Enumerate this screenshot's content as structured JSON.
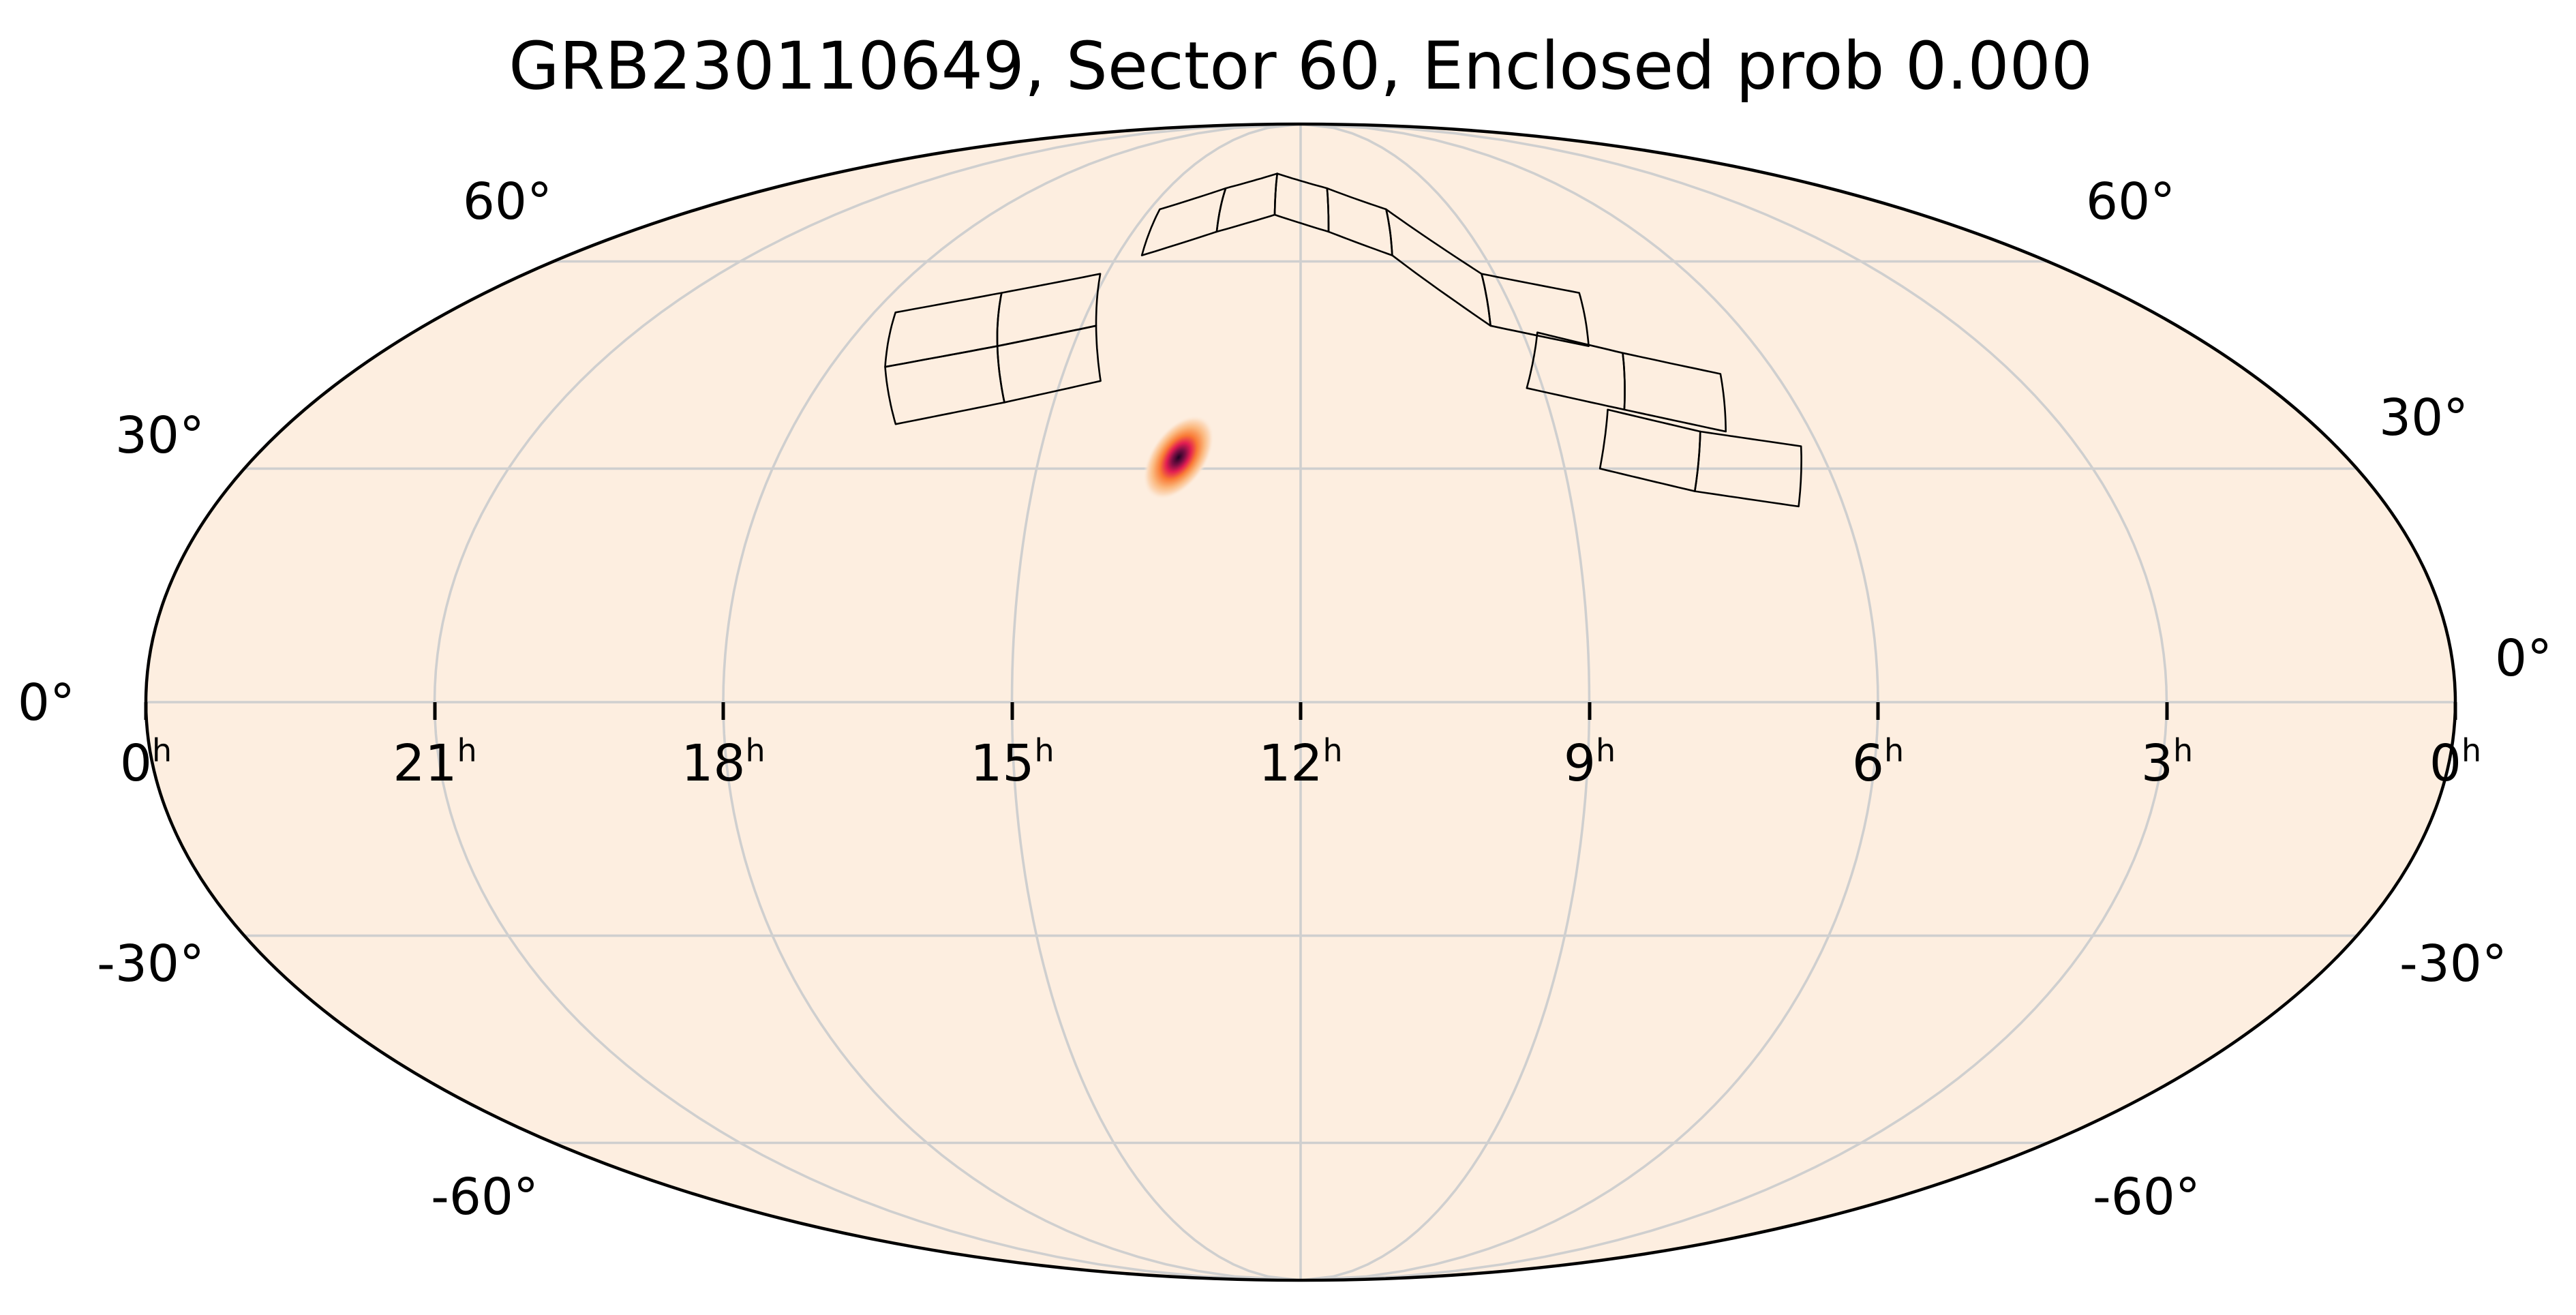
{
  "chart_data": {
    "type": "heatmap",
    "projection": "mollweide",
    "title": "GRB230110649, Sector 60, Enclosed prob 0.000",
    "colormap": "magma_r",
    "background_color": "#fdeee0",
    "ra_ticks": [
      {
        "value": 0,
        "label": "0",
        "unit": "h",
        "side": "left"
      },
      {
        "value": 21,
        "label": "21",
        "unit": "h"
      },
      {
        "value": 18,
        "label": "18",
        "unit": "h"
      },
      {
        "value": 15,
        "label": "15",
        "unit": "h"
      },
      {
        "value": 12,
        "label": "12",
        "unit": "h"
      },
      {
        "value": 9,
        "label": "9",
        "unit": "h"
      },
      {
        "value": 6,
        "label": "6",
        "unit": "h"
      },
      {
        "value": 3,
        "label": "3",
        "unit": "h"
      },
      {
        "value": 0,
        "label": "0",
        "unit": "h",
        "side": "right"
      }
    ],
    "dec_ticks": [
      {
        "value": 60,
        "label": "60°"
      },
      {
        "value": 30,
        "label": "30°"
      },
      {
        "value": 0,
        "label": "0°"
      },
      {
        "value": -30,
        "label": "-30°"
      },
      {
        "value": -60,
        "label": "-60°"
      }
    ],
    "grid": true,
    "probability_blob": {
      "ra_hours": 13.4,
      "dec_deg": 31.5,
      "sigma_major_deg": 4.5,
      "sigma_minor_deg": 2.6,
      "orientation_deg": 55,
      "peak_color": "#1e0322"
    },
    "footprints": [
      {
        "ra_hours": [
          17.7,
          16.4,
          16.0,
          17.3
        ],
        "dec_deg": [
          52,
          55,
          47,
          44
        ]
      },
      {
        "ra_hours": [
          16.4,
          15.1,
          14.8,
          16.0
        ],
        "dec_deg": [
          55,
          58,
          50,
          47
        ]
      },
      {
        "ra_hours": [
          17.3,
          16.0,
          15.6,
          16.8
        ],
        "dec_deg": [
          44,
          47,
          39,
          36
        ]
      },
      {
        "ra_hours": [
          16.0,
          14.8,
          14.5,
          15.6
        ],
        "dec_deg": [
          47,
          50,
          42,
          39
        ]
      },
      {
        "ra_hours": [
          14.8,
          13.7,
          13.5,
          14.6
        ],
        "dec_deg": [
          69,
          73,
          65,
          61
        ]
      },
      {
        "ra_hours": [
          13.7,
          12.6,
          12.5,
          13.5
        ],
        "dec_deg": [
          73,
          76,
          68,
          65
        ]
      },
      {
        "ra_hours": [
          12.6,
          11.4,
          11.5,
          12.5
        ],
        "dec_deg": [
          76,
          73,
          65,
          68
        ]
      },
      {
        "ra_hours": [
          11.4,
          10.3,
          10.5,
          11.5
        ],
        "dec_deg": [
          73,
          69,
          61,
          65
        ]
      },
      {
        "ra_hours": [
          10.3,
          9.2,
          9.4,
          10.5
        ],
        "dec_deg": [
          69,
          58,
          50,
          61
        ]
      },
      {
        "ra_hours": [
          9.2,
          7.9,
          8.2,
          9.4
        ],
        "dec_deg": [
          58,
          55,
          47,
          50
        ]
      },
      {
        "ra_hours": [
          8.8,
          7.8,
          8.1,
          9.2
        ],
        "dec_deg": [
          49,
          46,
          38,
          41
        ]
      },
      {
        "ra_hours": [
          7.8,
          6.7,
          7.0,
          8.1
        ],
        "dec_deg": [
          46,
          43,
          35,
          38
        ]
      },
      {
        "ra_hours": [
          8.3,
          7.3,
          7.6,
          8.6
        ],
        "dec_deg": [
          38,
          35,
          27,
          30
        ]
      },
      {
        "ra_hours": [
          7.3,
          6.2,
          6.5,
          7.6
        ],
        "dec_deg": [
          35,
          33,
          25,
          27
        ]
      }
    ]
  }
}
